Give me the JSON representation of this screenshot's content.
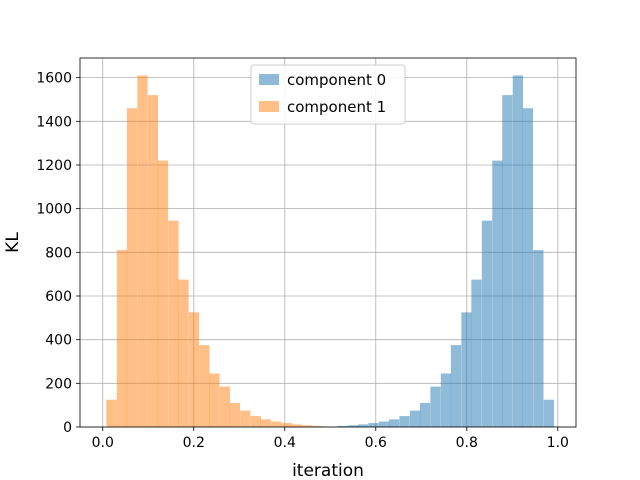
{
  "chart_data": {
    "type": "bar",
    "subtype": "overlapping-histogram",
    "xlabel": "iteration",
    "ylabel": "KL",
    "xlim": [
      -0.05,
      1.04
    ],
    "ylim": [
      0,
      1600
    ],
    "y_axis_max_shown": 1690,
    "grid": true,
    "legend_position": "upper-center",
    "xticks": [
      0.0,
      0.2,
      0.4,
      0.6,
      0.8,
      1.0
    ],
    "xtick_labels": [
      "0.0",
      "0.2",
      "0.4",
      "0.6",
      "0.8",
      "1.0"
    ],
    "yticks": [
      0,
      200,
      400,
      600,
      800,
      1000,
      1200,
      1400,
      1600
    ],
    "ytick_labels": [
      "0",
      "200",
      "400",
      "600",
      "800",
      "1000",
      "1200",
      "1400",
      "1600"
    ],
    "bin_width": 0.0226,
    "series": [
      {
        "name": "component 0",
        "color": "#1f77b4",
        "alpha": 0.5,
        "bin_starts": [
          0.516,
          0.539,
          0.561,
          0.584,
          0.607,
          0.629,
          0.652,
          0.675,
          0.697,
          0.72,
          0.743,
          0.765,
          0.788,
          0.81,
          0.833,
          0.856,
          0.878,
          0.901,
          0.923,
          0.946,
          0.969
        ],
        "counts": [
          5,
          8,
          12,
          18,
          25,
          35,
          50,
          75,
          110,
          185,
          245,
          375,
          525,
          675,
          945,
          1220,
          1520,
          1610,
          1460,
          810,
          125
        ]
      },
      {
        "name": "component 1",
        "color": "#ff7f0e",
        "alpha": 0.5,
        "bin_starts": [
          0.008,
          0.031,
          0.053,
          0.076,
          0.099,
          0.121,
          0.144,
          0.166,
          0.189,
          0.212,
          0.234,
          0.257,
          0.279,
          0.302,
          0.325,
          0.347,
          0.37,
          0.393,
          0.415,
          0.438,
          0.46
        ],
        "counts": [
          125,
          810,
          1460,
          1610,
          1520,
          1220,
          945,
          675,
          525,
          375,
          245,
          185,
          110,
          75,
          50,
          35,
          25,
          18,
          12,
          8,
          5
        ]
      }
    ]
  }
}
